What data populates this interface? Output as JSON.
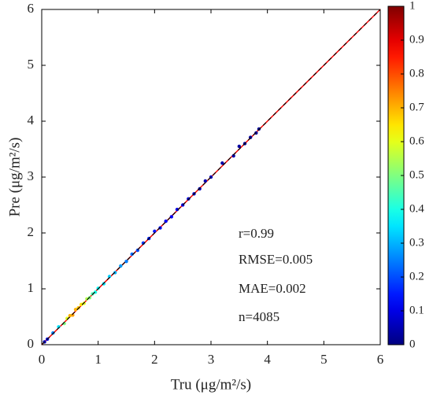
{
  "chart_data": {
    "type": "scatter",
    "x_label": "Tru (μg/m²/s)",
    "y_label": "Pre (μg/m²/s)",
    "annotations": [
      "r=0.99",
      "RMSE=0.005",
      "MAE=0.002",
      "n=4085"
    ],
    "xlim": [
      0,
      6
    ],
    "ylim": [
      0,
      6
    ],
    "xticks": [
      0,
      1,
      2,
      3,
      4,
      5,
      6
    ],
    "yticks": [
      0,
      1,
      2,
      3,
      4,
      5,
      6
    ],
    "clim": [
      0,
      1
    ],
    "cticks": [
      0,
      0.1,
      0.2,
      0.3,
      0.4,
      0.5,
      0.6,
      0.7,
      0.8,
      0.9,
      1
    ],
    "colormap": "jet",
    "identity_color": "#ff0000",
    "fit_color": "#000000",
    "x": [
      0.05,
      0.1,
      0.2,
      0.3,
      0.4,
      0.45,
      0.5,
      0.55,
      0.6,
      0.65,
      0.7,
      0.75,
      0.8,
      0.85,
      0.9,
      0.95,
      1.0,
      1.1,
      1.2,
      1.3,
      1.4,
      1.5,
      1.6,
      1.7,
      1.8,
      1.9,
      2.0,
      2.1,
      2.2,
      2.3,
      2.4,
      2.5,
      2.6,
      2.7,
      2.8,
      2.9,
      3.0,
      3.2,
      3.4,
      3.5,
      3.6,
      3.7,
      3.8,
      3.85
    ],
    "y": [
      0.05,
      0.1,
      0.21,
      0.32,
      0.38,
      0.47,
      0.52,
      0.53,
      0.63,
      0.66,
      0.72,
      0.74,
      0.82,
      0.84,
      0.91,
      0.94,
      1.01,
      1.09,
      1.22,
      1.29,
      1.41,
      1.49,
      1.62,
      1.69,
      1.82,
      1.9,
      2.03,
      2.09,
      2.21,
      2.29,
      2.42,
      2.5,
      2.61,
      2.7,
      2.79,
      2.93,
      3.0,
      3.25,
      3.38,
      3.55,
      3.6,
      3.71,
      3.79,
      3.86
    ],
    "density": [
      0.05,
      0.1,
      0.25,
      0.35,
      0.5,
      0.6,
      0.7,
      0.72,
      0.7,
      0.68,
      0.65,
      0.6,
      0.55,
      0.5,
      0.45,
      0.4,
      0.38,
      0.35,
      0.33,
      0.3,
      0.28,
      0.25,
      0.23,
      0.2,
      0.18,
      0.16,
      0.15,
      0.14,
      0.12,
      0.12,
      0.1,
      0.1,
      0.08,
      0.08,
      0.06,
      0.05,
      0.05,
      0.04,
      0.04,
      0.03,
      0.03,
      0.02,
      0.02,
      0.02
    ]
  }
}
